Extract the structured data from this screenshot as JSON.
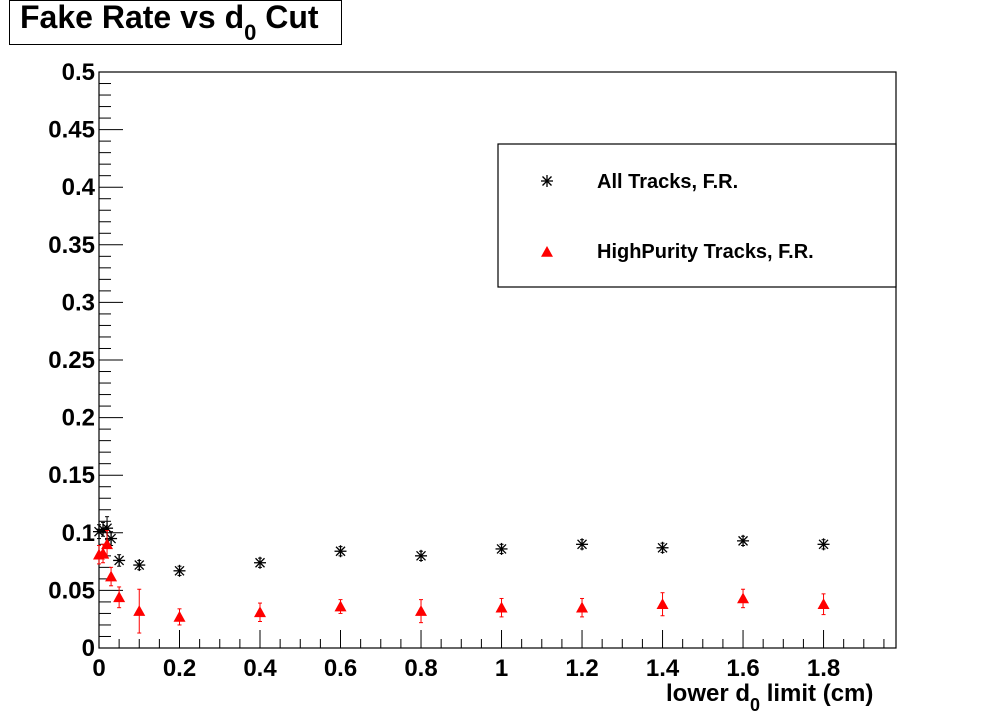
{
  "title": {
    "main": "Fake Rate vs d",
    "sub": "0",
    "suffix": " Cut"
  },
  "xaxis": {
    "pre": "lower d",
    "sub": "0",
    "post": " limit (cm)"
  },
  "colors": {
    "all": "#000000",
    "highpurity": "#ff0000"
  },
  "chart_data": {
    "type": "scatter",
    "xlim": [
      0,
      1.98
    ],
    "ylim": [
      0,
      0.5
    ],
    "xticks": [
      0,
      0.2,
      0.4,
      0.6,
      0.8,
      1,
      1.2,
      1.4,
      1.6,
      1.8
    ],
    "xtick_labels": [
      "0",
      "0.2",
      "0.4",
      "0.6",
      "0.8",
      "1",
      "1.2",
      "1.4",
      "1.6",
      "1.8"
    ],
    "yticks": [
      0,
      0.05,
      0.1,
      0.15,
      0.2,
      0.25,
      0.3,
      0.35,
      0.4,
      0.45,
      0.5
    ],
    "ytick_labels": [
      "0",
      "0.05",
      "0.1",
      "0.15",
      "0.2",
      "0.25",
      "0.3",
      "0.35",
      "0.4",
      "0.45",
      "0.5"
    ],
    "legend_position": "top-right",
    "series": [
      {
        "name": "All Tracks, F.R.",
        "marker": "asterisk",
        "points": [
          {
            "x": 0.0,
            "y": 0.101,
            "err": 0.006
          },
          {
            "x": 0.01,
            "y": 0.103,
            "err": 0.006
          },
          {
            "x": 0.02,
            "y": 0.104,
            "err": 0.01
          },
          {
            "x": 0.03,
            "y": 0.095,
            "err": 0.006
          },
          {
            "x": 0.05,
            "y": 0.076,
            "err": 0.005
          },
          {
            "x": 0.1,
            "y": 0.072,
            "err": 0.004
          },
          {
            "x": 0.2,
            "y": 0.067,
            "err": 0.004
          },
          {
            "x": 0.4,
            "y": 0.074,
            "err": 0.004
          },
          {
            "x": 0.6,
            "y": 0.084,
            "err": 0.004
          },
          {
            "x": 0.8,
            "y": 0.08,
            "err": 0.004
          },
          {
            "x": 1.0,
            "y": 0.086,
            "err": 0.004
          },
          {
            "x": 1.2,
            "y": 0.09,
            "err": 0.004
          },
          {
            "x": 1.4,
            "y": 0.087,
            "err": 0.004
          },
          {
            "x": 1.6,
            "y": 0.093,
            "err": 0.004
          },
          {
            "x": 1.8,
            "y": 0.09,
            "err": 0.004
          }
        ]
      },
      {
        "name": "HighPurity Tracks, F.R.",
        "marker": "triangle",
        "points": [
          {
            "x": 0.0,
            "y": 0.081,
            "err": 0.008
          },
          {
            "x": 0.01,
            "y": 0.082,
            "err": 0.008
          },
          {
            "x": 0.02,
            "y": 0.09,
            "err": 0.012
          },
          {
            "x": 0.03,
            "y": 0.062,
            "err": 0.008
          },
          {
            "x": 0.05,
            "y": 0.044,
            "err": 0.009
          },
          {
            "x": 0.1,
            "y": 0.032,
            "err": 0.019
          },
          {
            "x": 0.2,
            "y": 0.027,
            "err": 0.007
          },
          {
            "x": 0.4,
            "y": 0.031,
            "err": 0.008
          },
          {
            "x": 0.6,
            "y": 0.036,
            "err": 0.006
          },
          {
            "x": 0.8,
            "y": 0.032,
            "err": 0.01
          },
          {
            "x": 1.0,
            "y": 0.035,
            "err": 0.008
          },
          {
            "x": 1.2,
            "y": 0.035,
            "err": 0.008
          },
          {
            "x": 1.4,
            "y": 0.038,
            "err": 0.01
          },
          {
            "x": 1.6,
            "y": 0.043,
            "err": 0.008
          },
          {
            "x": 1.8,
            "y": 0.038,
            "err": 0.009
          }
        ]
      }
    ]
  }
}
